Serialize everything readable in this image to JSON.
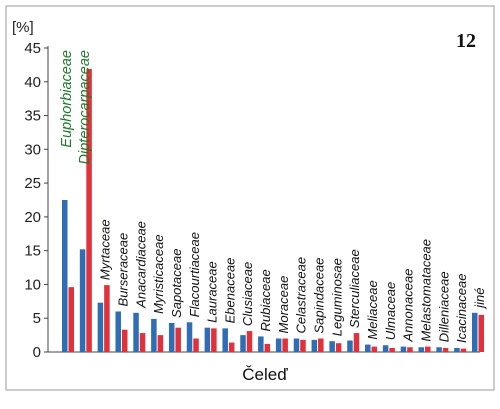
{
  "panel_number": "12",
  "chart_data": {
    "type": "bar",
    "ylabel": "[%]",
    "xlabel": "Čeleď",
    "ylim": [
      0,
      45
    ],
    "yticks": [
      0,
      5,
      10,
      15,
      20,
      25,
      30,
      35,
      40,
      45
    ],
    "grid": false,
    "legend": "none",
    "colors": {
      "series_a": "#2f6db5",
      "series_b": "#e0323a",
      "highlight_label": "#1f7a2e"
    },
    "categories": [
      "Euphorbiaceae",
      "Dipterocarpaceae",
      "Myrtaceae",
      "Burseraceae",
      "Anacardiaceae",
      "Myristicaceae",
      "Sapotaceae",
      "Flacourtiaceae",
      "Lauraceae",
      "Ebenaceae",
      "Clusiaceae",
      "Rubiaceae",
      "Moraceae",
      "Celastraceae",
      "Sapindaceae",
      "Leguminosae",
      "Sterculiaceae",
      "Meliaceae",
      "Ulmaceae",
      "Annonaceae",
      "Melastomataceae",
      "Dilleniaceae",
      "Icacinaceae",
      "jiné"
    ],
    "highlighted_categories": [
      "Euphorbiaceae",
      "Dipterocarpaceae"
    ],
    "series": [
      {
        "values": [
          22.5,
          15.2,
          7.3,
          6.0,
          5.8,
          4.9,
          4.3,
          4.4,
          3.6,
          3.5,
          2.5,
          2.3,
          2.0,
          2.0,
          1.8,
          1.6,
          1.7,
          1.1,
          1.0,
          0.8,
          0.7,
          0.7,
          0.6,
          5.8
        ]
      },
      {
        "values": [
          9.6,
          41.9,
          9.9,
          3.3,
          2.8,
          2.5,
          3.6,
          2.0,
          3.5,
          1.4,
          3.1,
          1.2,
          2.0,
          1.8,
          2.0,
          1.3,
          2.8,
          0.8,
          0.6,
          0.7,
          0.8,
          0.6,
          0.5,
          5.5
        ]
      }
    ]
  }
}
